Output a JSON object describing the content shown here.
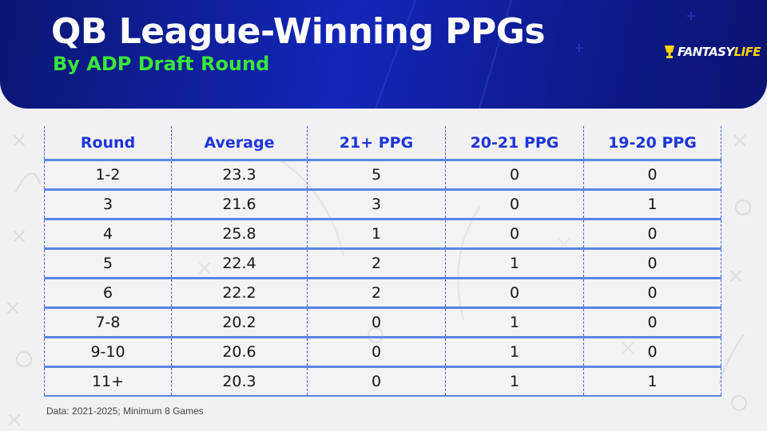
{
  "header": {
    "title": "QB League-Winning PPGs",
    "subtitle": "By ADP Draft Round",
    "logo_main": "FANTASY",
    "logo_accent": "LIFE"
  },
  "colors": {
    "header_blue": "#1326b8",
    "subtitle_green": "#39e639",
    "column_header_blue": "#1d35d8",
    "row_line_blue": "#5a86e6",
    "logo_yellow": "#ffd400"
  },
  "chart_data": {
    "type": "table",
    "title": "QB League-Winning PPGs",
    "subtitle": "By ADP Draft Round",
    "columns": [
      "Round",
      "Average",
      "21+ PPG",
      "20-21 PPG",
      "19-20 PPG"
    ],
    "rows": [
      [
        "1-2",
        "23.3",
        "5",
        "0",
        "0"
      ],
      [
        "3",
        "21.6",
        "3",
        "0",
        "1"
      ],
      [
        "4",
        "25.8",
        "1",
        "0",
        "0"
      ],
      [
        "5",
        "22.4",
        "2",
        "1",
        "0"
      ],
      [
        "6",
        "22.2",
        "2",
        "0",
        "0"
      ],
      [
        "7-8",
        "20.2",
        "0",
        "1",
        "0"
      ],
      [
        "9-10",
        "20.6",
        "0",
        "1",
        "0"
      ],
      [
        "11+",
        "20.3",
        "0",
        "1",
        "1"
      ]
    ],
    "footnote": "Data: 2021-2025; Minimum 8 Games"
  }
}
